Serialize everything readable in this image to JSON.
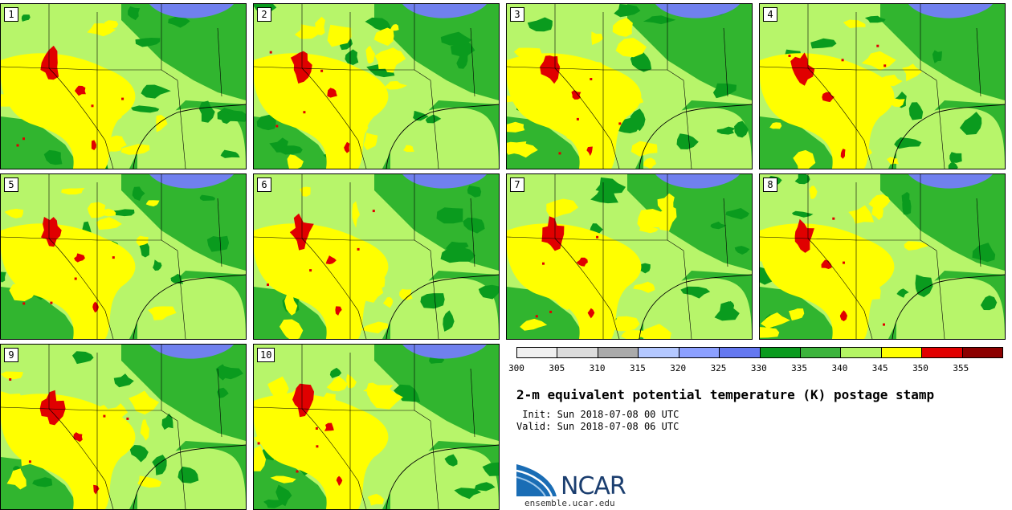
{
  "panels": [
    {
      "label": "1"
    },
    {
      "label": "2"
    },
    {
      "label": "3"
    },
    {
      "label": "4"
    },
    {
      "label": "5"
    },
    {
      "label": "6"
    },
    {
      "label": "7"
    },
    {
      "label": "8"
    },
    {
      "label": "9"
    },
    {
      "label": "10"
    }
  ],
  "colorbar": {
    "colors": [
      "#f0f0f0",
      "#dcdcdc",
      "#aaaaaa",
      "#b4c8ff",
      "#8ca0ff",
      "#6478f0",
      "#0a9b1e",
      "#3cb43c",
      "#b4f564",
      "#ffff00",
      "#e10000",
      "#8c0000"
    ],
    "ticks": [
      "300",
      "305",
      "310",
      "315",
      "320",
      "325",
      "330",
      "335",
      "340",
      "345",
      "350",
      "355"
    ]
  },
  "title": "2-m equivalent potential temperature (K) postage stamp",
  "init": " Init: Sun 2018-07-08 00 UTC",
  "valid": "Valid: Sun 2018-07-08 06 UTC",
  "logo": {
    "name": "NCAR",
    "url": "ensemble.ucar.edu"
  },
  "field_colors": {
    "land": "#b7f56a",
    "moist": "#ffff00",
    "dry": "#31b52f",
    "very_dry": "#0a9b1e",
    "hot": "#e00000",
    "lake": "#7080ee"
  }
}
